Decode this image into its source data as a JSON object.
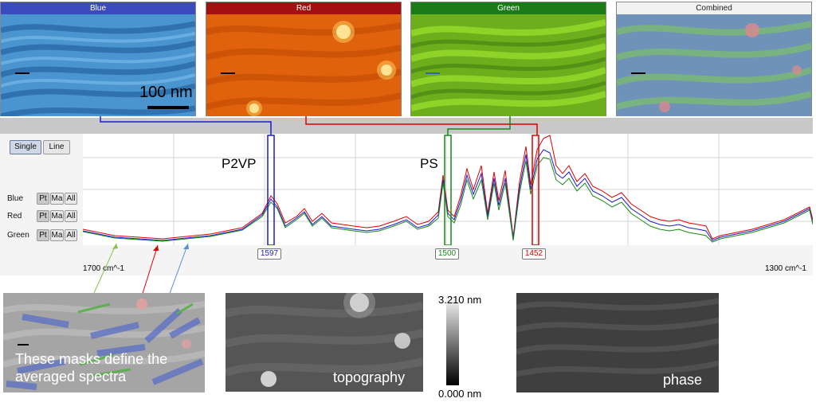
{
  "panels": [
    {
      "title": "Blue",
      "header_color": "#3a4bbf"
    },
    {
      "title": "Red",
      "header_color": "#a40f0f"
    },
    {
      "title": "Green",
      "header_color": "#1b7b17"
    },
    {
      "title": "Combined",
      "header_color": "#f2f2f2"
    }
  ],
  "scalebar": {
    "label": "100 nm"
  },
  "mode_buttons": {
    "single": "Single",
    "line": "Line"
  },
  "channels": [
    {
      "name": "Blue",
      "color": "#1a1ad0"
    },
    {
      "name": "Red",
      "color": "#e00000"
    },
    {
      "name": "Green",
      "color": "#178a17"
    }
  ],
  "mini_buttons": {
    "pt": "Pt",
    "ma": "Ma",
    "all": "All"
  },
  "axis": {
    "left_label": "1700 cm^-1",
    "right_label": "1300 cm^-1"
  },
  "peaks": {
    "p2vp": "P2VP",
    "ps": "PS"
  },
  "markers": [
    {
      "value": "1597",
      "color": "#1a1ad0"
    },
    {
      "value": "1500",
      "color": "#178a17"
    },
    {
      "value": "1452",
      "color": "#e00000"
    }
  ],
  "mask_caption": {
    "line1": "These masks define the",
    "line2": "averaged spectra"
  },
  "topography": {
    "label": "topography",
    "max": "3.210 nm",
    "min": "0.000 nm"
  },
  "phase": {
    "label": "phase"
  }
}
